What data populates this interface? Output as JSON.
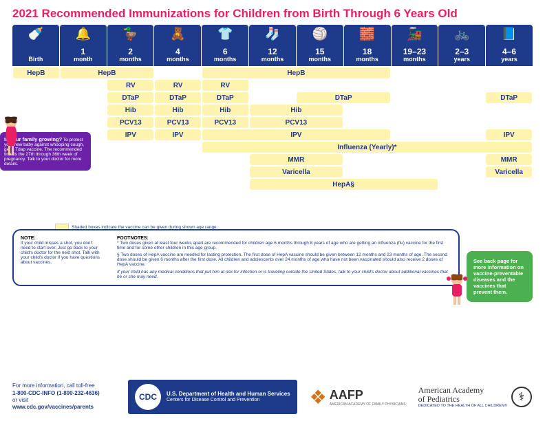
{
  "title": "2021 Recommended Immunizations for Children from Birth Through 6 Years Old",
  "colors": {
    "header_bg": "#1e3a8a",
    "pill_bg": "#fff3b0",
    "pill_text": "#1e3a8a",
    "title": "#e91e63",
    "purple": "#6b21a8",
    "green": "#4caf50"
  },
  "ages": [
    {
      "icon": "🍼",
      "label": "Birth",
      "num": ""
    },
    {
      "icon": "🔔",
      "label": "month",
      "num": "1"
    },
    {
      "icon": "🦆",
      "label": "months",
      "num": "2"
    },
    {
      "icon": "🧸",
      "label": "months",
      "num": "4"
    },
    {
      "icon": "👕",
      "label": "months",
      "num": "6"
    },
    {
      "icon": "🧦",
      "label": "months",
      "num": "12"
    },
    {
      "icon": "🏐",
      "label": "months",
      "num": "15"
    },
    {
      "icon": "🧱",
      "label": "months",
      "num": "18"
    },
    {
      "icon": "🚂",
      "label": "months",
      "num": "19–23"
    },
    {
      "icon": "🚲",
      "label": "years",
      "num": "2–3"
    },
    {
      "icon": "📘",
      "label": "years",
      "num": "4–6"
    }
  ],
  "vaccines": {
    "hepb1": "HepB",
    "hepb2": "HepB",
    "hepb3": "HepB",
    "rv": "RV",
    "dtap": "DTaP",
    "hib": "Hib",
    "pcv13": "PCV13",
    "ipv": "IPV",
    "ipv_range": "IPV",
    "flu": "Influenza (Yearly)*",
    "mmr": "MMR",
    "var": "Varicella",
    "hepa": "HepA§"
  },
  "callout_purple": {
    "heading": "Is your family growing?",
    "body": "To protect your new baby against whooping cough, get a Tdap vaccine. The recommended time is the 27th through 36th week of pregnancy. Talk to your doctor for more details."
  },
  "legend": "Shaded boxes indicate the vaccine can be given during shown age range.",
  "notes": {
    "note_h": "NOTE:",
    "note_b": "If your child misses a shot, you don't need to start over. Just go back to your child's doctor for the next shot. Talk with your child's doctor if you have questions about vaccines.",
    "foot_h": "FOOTNOTES:",
    "foot1": "Two doses given at least four weeks apart are recommended for children age 6 months through 8 years of age who are getting an influenza (flu) vaccine for the first time and for some other children in this age group.",
    "foot2": "Two doses of HepA vaccine are needed for lasting protection. The first dose of HepA vaccine should be given between 12 months and 23 months of age. The second dose should be given 6 months after the first dose. All children and adolescents over 24 months of age who have not been vaccinated should also receive 2 doses of HepA vaccine.",
    "ital": "If your child has any medical conditions that put him at risk for infection or is traveling outside the United States, talk to your child's doctor about additional vaccines that he or she may need."
  },
  "green": "See back page for more information on vaccine-preventable diseases and the vaccines that prevent them.",
  "footer": {
    "info1": "For more information, call toll-free",
    "phone": "1-800-CDC-INFO (1-800-232-4636)",
    "or": "or visit",
    "url": "www.cdc.gov/vaccines/parents",
    "cdc": "CDC",
    "dept": "U.S. Department of Health and Human Services",
    "centers": "Centers for Disease Control and Prevention",
    "aafp": "AAFP",
    "aafp_sub": "AMERICAN ACADEMY OF FAMILY PHYSICIANS",
    "aap1": "American Academy",
    "aap2": "of Pediatrics",
    "aap_sub": "DEDICATED TO THE HEALTH OF ALL CHILDREN®"
  }
}
